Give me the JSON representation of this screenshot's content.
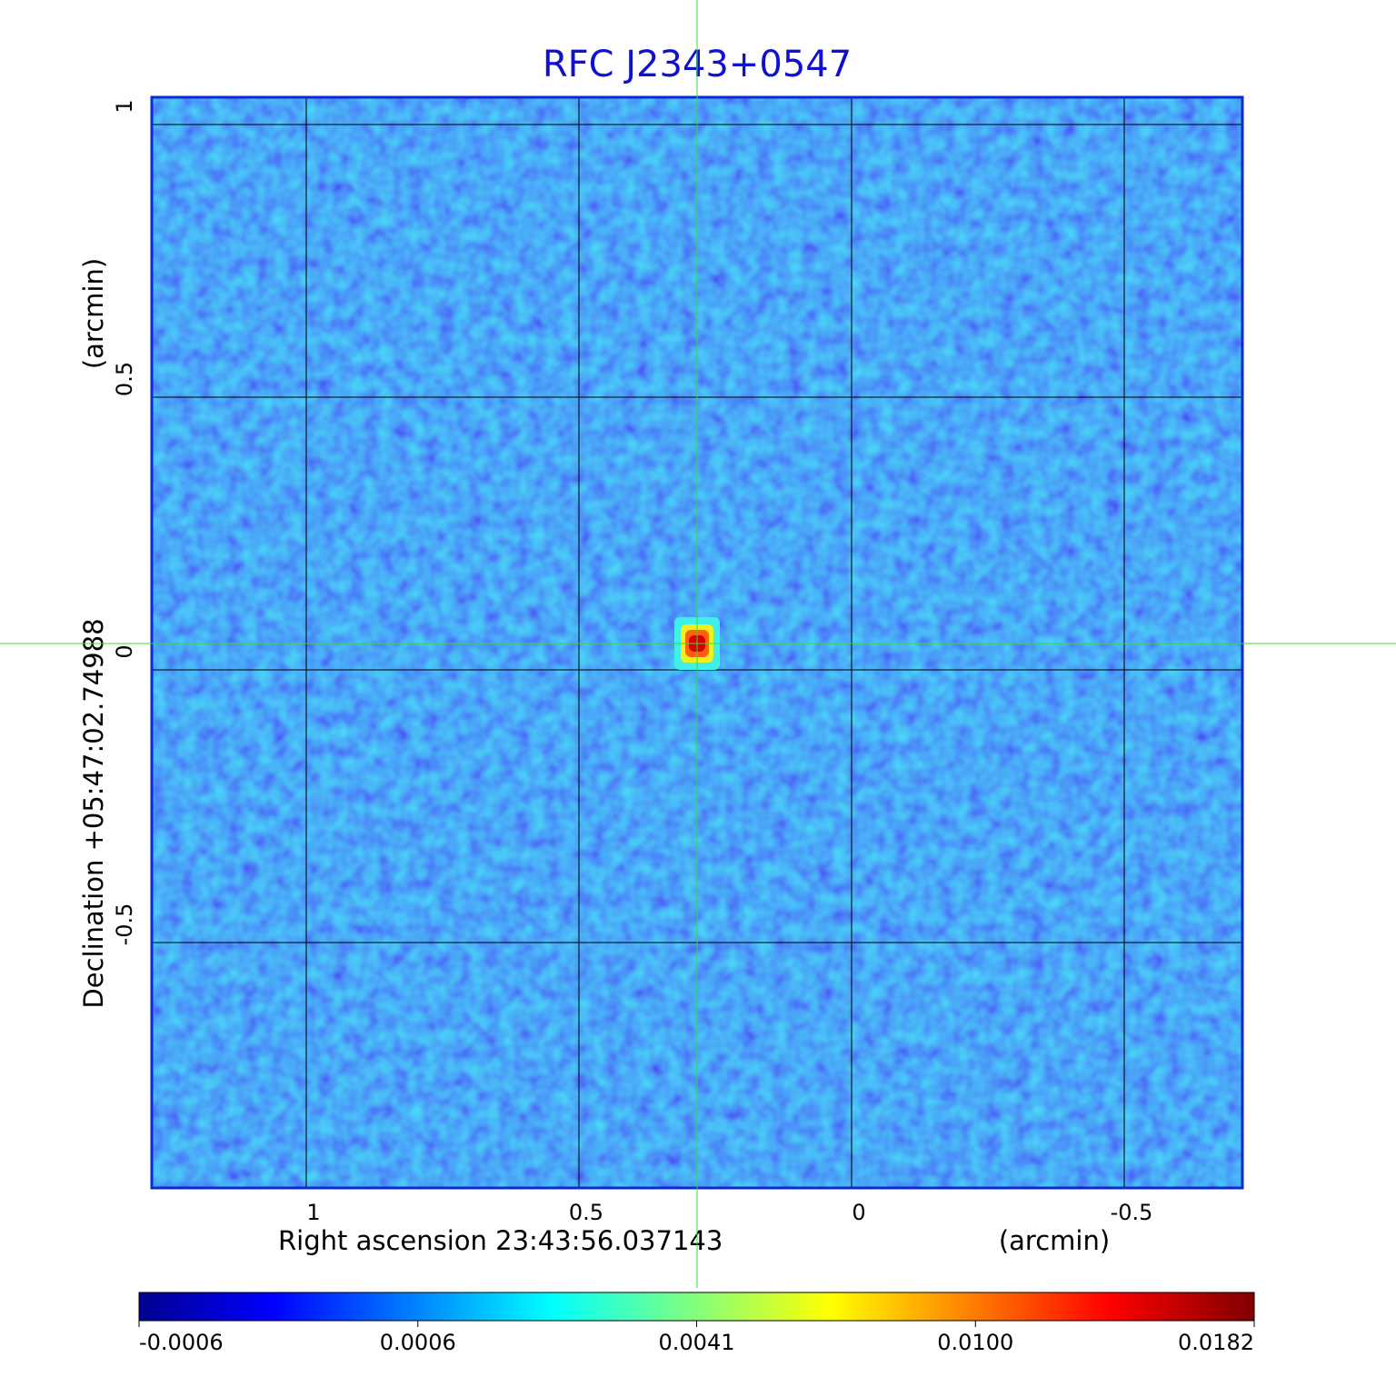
{
  "chart_data": {
    "type": "image",
    "title": "RFC J2343+0547",
    "xlabel": "Right ascension  23:43:56.037143",
    "xunit": "(arcmin)",
    "ylabel": "Declination  +05:47:02.74988",
    "yunit": "(arcmin)",
    "xlim": [
      1.2833,
      -0.7167
    ],
    "ylim": [
      -0.95,
      1.05
    ],
    "xticks": [
      1.0,
      0.5,
      0.0,
      -0.5
    ],
    "yticks": [
      1.0,
      0.5,
      0.0,
      -0.5
    ],
    "grid": true,
    "crosshair": {
      "x": 0.2833,
      "y": 0.0483,
      "color": "#33dd33"
    },
    "source": {
      "x": 0.2833,
      "y": 0.0483,
      "value": 0.0182
    },
    "colorbar": {
      "colormap": "jet",
      "ticks": [
        -0.0006,
        0.0006,
        0.0041,
        {
          "value": 0.01,
          "label": "0.0100"
        },
        0.0182
      ]
    }
  }
}
